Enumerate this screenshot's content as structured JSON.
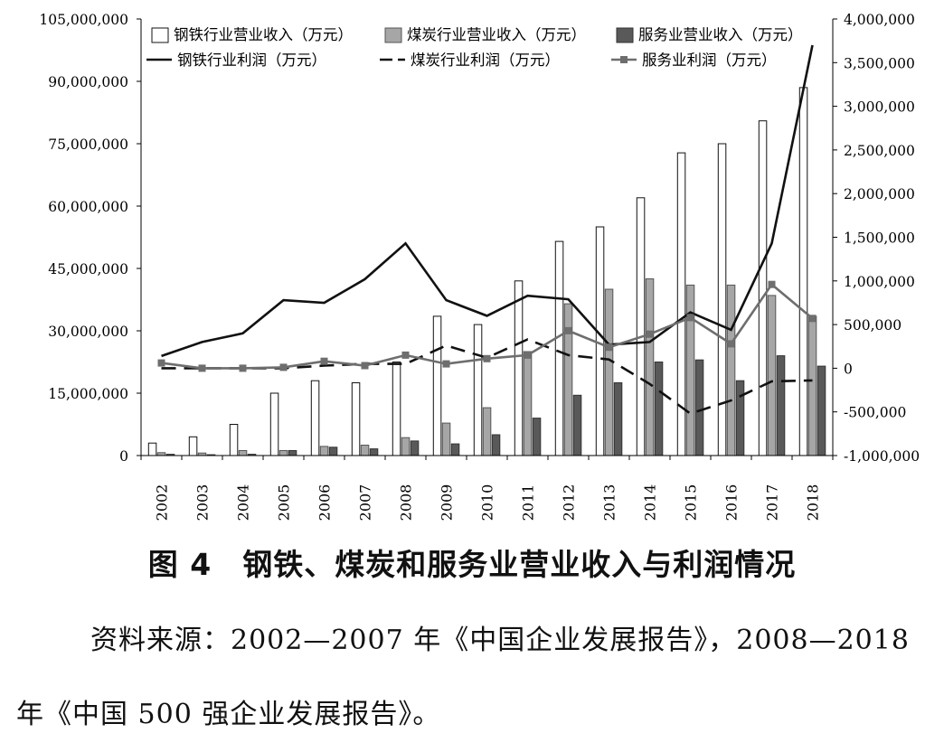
{
  "chart_data": {
    "type": "bar",
    "title": "",
    "xlabel": "",
    "ylabel": "",
    "ylabel_right": "",
    "categories": [
      "2002",
      "2003",
      "2004",
      "2005",
      "2006",
      "2007",
      "2008",
      "2009",
      "2010",
      "2011",
      "2012",
      "2013",
      "2014",
      "2015",
      "2016",
      "2017",
      "2018"
    ],
    "ylim": [
      0,
      105000000
    ],
    "y_ticks": [
      0,
      15000000,
      30000000,
      45000000,
      60000000,
      75000000,
      90000000,
      105000000
    ],
    "y_tick_labels": [
      "0",
      "15,000,000",
      "30,000,000",
      "45,000,000",
      "60,000,000",
      "75,000,000",
      "90,000,000",
      "105,000,000"
    ],
    "y2lim": [
      -1000000,
      4000000
    ],
    "y2_ticks": [
      -1000000,
      -500000,
      0,
      500000,
      1000000,
      1500000,
      2000000,
      2500000,
      3000000,
      3500000,
      4000000
    ],
    "y2_tick_labels": [
      "-1,000,000",
      "-500,000",
      "0",
      "500,000",
      "1,000,000",
      "1,500,000",
      "2,000,000",
      "2,500,000",
      "3,000,000",
      "3,500,000",
      "4,000,000"
    ],
    "grid": false,
    "legend_position": "top",
    "bar_series": [
      {
        "name": "钢铁行业营业收入（万元）",
        "color": "#ffffff",
        "values": [
          3000000,
          4500000,
          7500000,
          15000000,
          18000000,
          17500000,
          22500000,
          33500000,
          31500000,
          42000000,
          51500000,
          55000000,
          62000000,
          72800000,
          75000000,
          80500000,
          88500000
        ]
      },
      {
        "name": "煤炭行业营业收入（万元）",
        "color": "#a6a6a6",
        "values": [
          700000,
          600000,
          1200000,
          1200000,
          2200000,
          2500000,
          4300000,
          7800000,
          11500000,
          25000000,
          36500000,
          40000000,
          42500000,
          41000000,
          41000000,
          38500000,
          33500000
        ]
      },
      {
        "name": "服务业营业收入（万元）",
        "color": "#595959",
        "values": [
          300000,
          200000,
          300000,
          1200000,
          2000000,
          1600000,
          3500000,
          2800000,
          5000000,
          9000000,
          14500000,
          17500000,
          22500000,
          23000000,
          18000000,
          24000000,
          21500000
        ]
      }
    ],
    "line_series": [
      {
        "name": "钢铁行业利润（万元）",
        "style": "solid",
        "values": [
          140000,
          300000,
          400000,
          780000,
          750000,
          1020000,
          1430000,
          780000,
          600000,
          830000,
          790000,
          270000,
          300000,
          640000,
          440000,
          1430000,
          3700000
        ]
      },
      {
        "name": "煤炭行业利润（万元）",
        "style": "dashed",
        "values": [
          0,
          0,
          0,
          0,
          30000,
          50000,
          50000,
          260000,
          120000,
          330000,
          150000,
          100000,
          -180000,
          -520000,
          -370000,
          -150000,
          -140000
        ]
      },
      {
        "name": "服务业利润（万元）",
        "style": "marker",
        "values": [
          60000,
          0,
          0,
          10000,
          80000,
          30000,
          150000,
          50000,
          110000,
          150000,
          430000,
          240000,
          390000,
          580000,
          280000,
          960000,
          570000
        ]
      }
    ]
  },
  "caption": "图 4　钢铁、煤炭和服务业营业收入与利润情况",
  "source_note": "资料来源：2002—2007 年《中国企业发展报告》，2008—2018 年《中国 500 强企业发展报告》。"
}
